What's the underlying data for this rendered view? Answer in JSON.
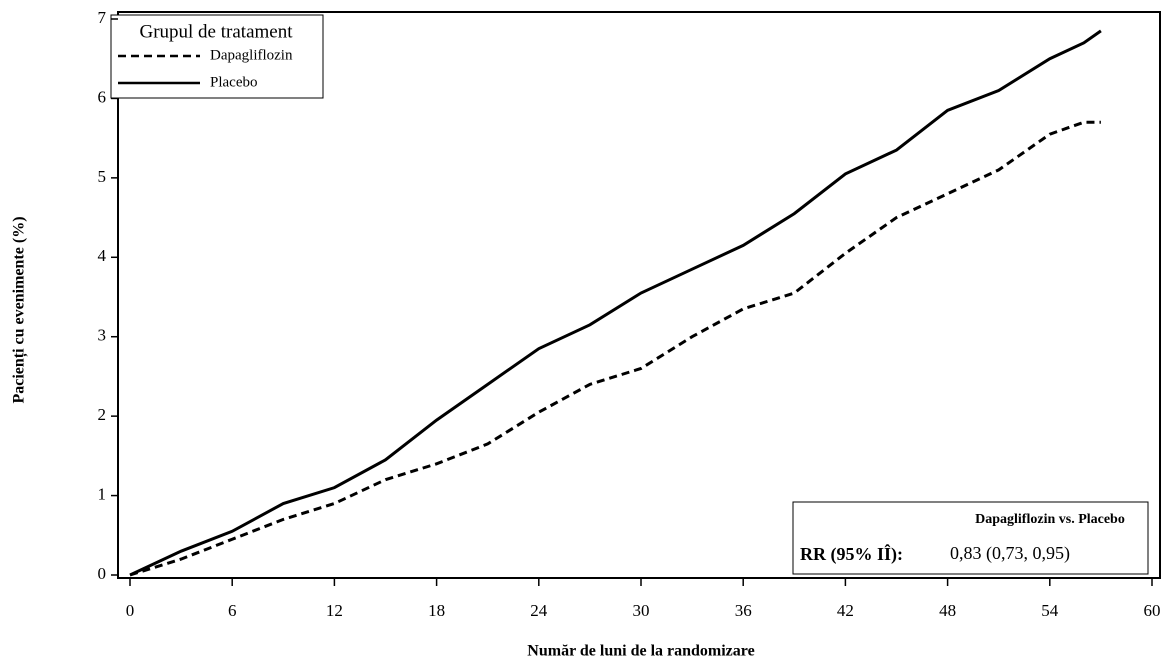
{
  "chart_data": {
    "type": "line",
    "y_label": "Pacienți cu evenimente (%)",
    "x_label": "Număr de luni de la randomizare",
    "legend_title": "Grupul de tratament",
    "legend": "upper left",
    "x": [
      0,
      3,
      6,
      9,
      12,
      15,
      18,
      21,
      24,
      27,
      30,
      33,
      36,
      39,
      42,
      45,
      48,
      51,
      54,
      56,
      57
    ],
    "series": [
      {
        "name": "Dapagliflozin",
        "color": "#000000",
        "linestyle": "dashed",
        "values": [
          0,
          0.2,
          0.45,
          0.7,
          0.9,
          1.2,
          1.4,
          1.65,
          2.05,
          2.4,
          2.6,
          3.0,
          3.35,
          3.55,
          4.05,
          4.5,
          4.8,
          5.1,
          5.55,
          5.7,
          5.7
        ]
      },
      {
        "name": "Placebo",
        "color": "#000000",
        "linestyle": "solid",
        "values": [
          0,
          0.3,
          0.55,
          0.9,
          1.1,
          1.45,
          1.95,
          2.4,
          2.85,
          3.15,
          3.55,
          3.85,
          4.15,
          4.55,
          5.05,
          5.35,
          5.85,
          6.1,
          6.5,
          6.7,
          6.85
        ]
      }
    ],
    "xlim": [
      0,
      60
    ],
    "xticks": [
      0,
      6,
      12,
      18,
      24,
      30,
      36,
      42,
      48,
      54,
      60
    ],
    "ylim": [
      0,
      7
    ],
    "yticks": [
      0,
      1,
      2,
      3,
      4,
      5,
      6,
      7
    ],
    "annotation": {
      "header": "Dapagliflozin vs. Placebo",
      "label": "RR (95% IÎ):",
      "value": "0,83 (0,73, 0,95)"
    }
  }
}
